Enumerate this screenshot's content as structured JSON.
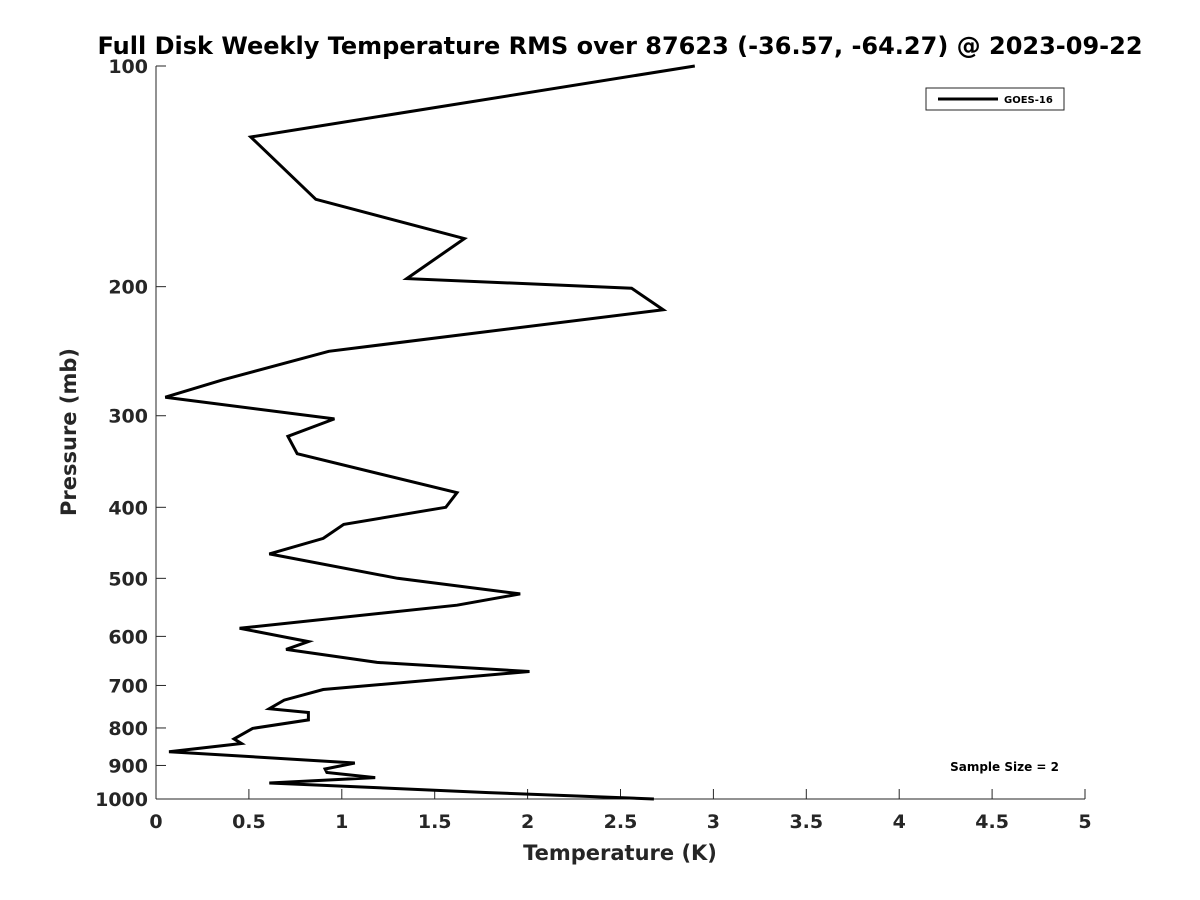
{
  "chart_data": {
    "type": "line",
    "title": "Full Disk Weekly Temperature RMS over 87623 (-36.57, -64.27) @ 2023-09-22",
    "xlabel": "Temperature (K)",
    "ylabel": "Pressure (mb)",
    "xlim": [
      0,
      5
    ],
    "ylim": [
      100,
      1000
    ],
    "y_scale": "log",
    "y_reversed": true,
    "grid": false,
    "legend_position": "top-right",
    "x_ticks": [
      "0",
      "0.5",
      "1",
      "1.5",
      "2",
      "2.5",
      "3",
      "3.5",
      "4",
      "4.5",
      "5"
    ],
    "y_ticks": [
      "100",
      "200",
      "300",
      "400",
      "500",
      "600",
      "700",
      "800",
      "900",
      "1000"
    ],
    "series": [
      {
        "name": "GOES-16",
        "color": "#000000",
        "points": [
          [
            2.9,
            100
          ],
          [
            0.51,
            125
          ],
          [
            0.86,
            152
          ],
          [
            1.66,
            172
          ],
          [
            1.35,
            195
          ],
          [
            2.56,
            201
          ],
          [
            2.73,
            215
          ],
          [
            0.93,
            245
          ],
          [
            0.36,
            268
          ],
          [
            0.05,
            283
          ],
          [
            0.96,
            303
          ],
          [
            0.71,
            320
          ],
          [
            0.76,
            338
          ],
          [
            1.62,
            382
          ],
          [
            1.56,
            400
          ],
          [
            1.01,
            422
          ],
          [
            0.9,
            441
          ],
          [
            0.61,
            463
          ],
          [
            1.3,
            500
          ],
          [
            1.96,
            525
          ],
          [
            1.62,
            544
          ],
          [
            0.45,
            585
          ],
          [
            0.82,
            610
          ],
          [
            0.7,
            625
          ],
          [
            1.19,
            651
          ],
          [
            2.01,
            670
          ],
          [
            0.9,
            709
          ],
          [
            0.69,
            733
          ],
          [
            0.61,
            753
          ],
          [
            0.82,
            762
          ],
          [
            0.82,
            780
          ],
          [
            0.52,
            801
          ],
          [
            0.42,
            828
          ],
          [
            0.46,
            840
          ],
          [
            0.07,
            862
          ],
          [
            1.07,
            893
          ],
          [
            0.91,
            910
          ],
          [
            0.92,
            920
          ],
          [
            1.18,
            935
          ],
          [
            0.61,
            951
          ],
          [
            1.79,
            980
          ],
          [
            2.68,
            1000
          ]
        ]
      }
    ],
    "annotations": [
      "Sample Size = 2"
    ]
  }
}
